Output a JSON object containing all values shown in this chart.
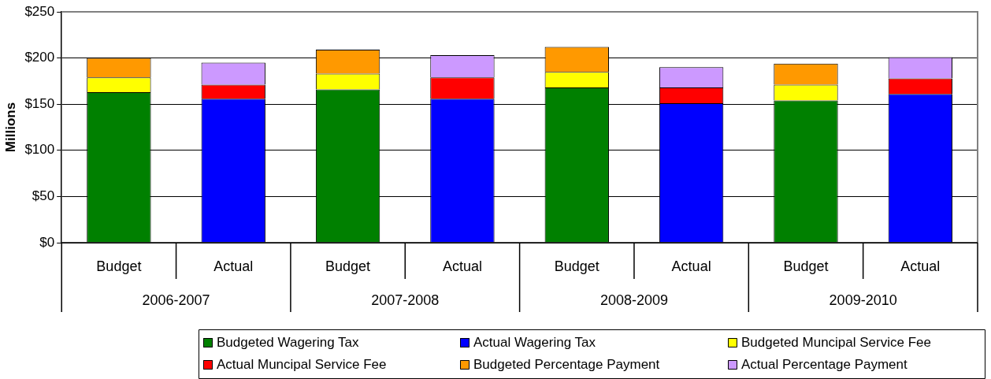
{
  "chart_data": {
    "type": "bar",
    "stacked": true,
    "ylabel": "Millions",
    "categories": [
      "Budget",
      "Actual",
      "Budget",
      "Actual",
      "Budget",
      "Actual",
      "Budget",
      "Actual"
    ],
    "annotations": [
      "2006-2007",
      "2007-2008",
      "2008-2009",
      "2009-2010"
    ],
    "ylim": [
      0,
      250
    ],
    "yticks": [
      {
        "value": 0,
        "label": "$0"
      },
      {
        "value": 50,
        "label": "$50"
      },
      {
        "value": 100,
        "label": "$100"
      },
      {
        "value": 150,
        "label": "$150"
      },
      {
        "value": 200,
        "label": "$200"
      },
      {
        "value": 250,
        "label": "$250"
      }
    ],
    "grid": "y",
    "legend": "bottom",
    "series": [
      {
        "name": "Budgeted Wagering Tax",
        "color": "#008000",
        "values": [
          163,
          null,
          166,
          null,
          168,
          null,
          154,
          null
        ]
      },
      {
        "name": "Actual Wagering Tax",
        "color": "#0000ff",
        "values": [
          null,
          156,
          null,
          156,
          null,
          151,
          null,
          161
        ]
      },
      {
        "name": "Budgeted Muncipal Service Fee",
        "color": "#ffff00",
        "values": [
          16,
          null,
          17,
          null,
          17,
          null,
          17,
          null
        ]
      },
      {
        "name": "Actual Muncipal Service Fee",
        "color": "#ff0000",
        "values": [
          null,
          15,
          null,
          23,
          null,
          17,
          null,
          17
        ]
      },
      {
        "name": "Budgeted Percentage Payment",
        "color": "#ff9900",
        "values": [
          21,
          null,
          26,
          null,
          27,
          null,
          23,
          null
        ]
      },
      {
        "name": "Actual Percentage Payment",
        "color": "#cc99ff",
        "values": [
          null,
          24,
          null,
          24,
          null,
          22,
          null,
          23
        ]
      }
    ]
  }
}
